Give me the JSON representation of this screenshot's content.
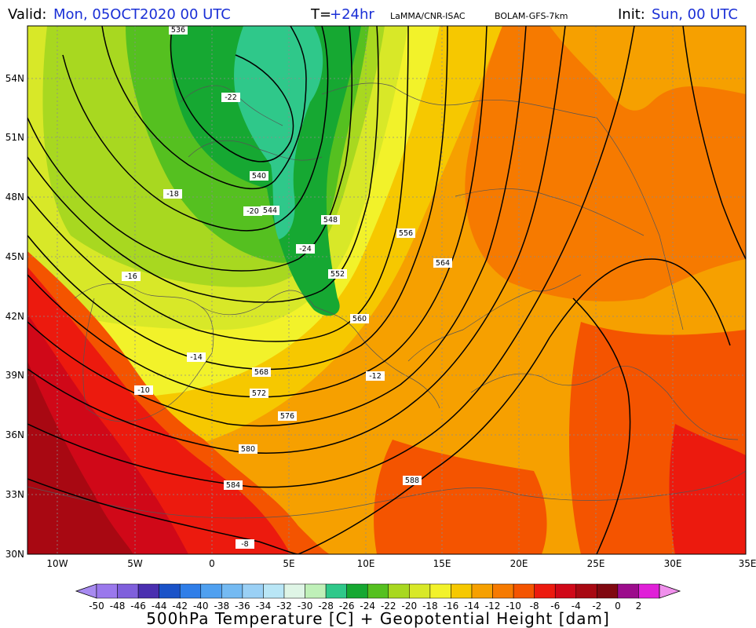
{
  "header": {
    "valid_label": "Valid:",
    "valid_value": "Mon, 05OCT2020   00 UTC",
    "step_label": "T=",
    "step_value": "+24hr",
    "producer": "LaMMA/CNR-ISAC",
    "model": "BOLAM-GFS-7km",
    "init_label": "Init:",
    "init_value": "Sun, 00 UTC"
  },
  "map": {
    "lat_labels": [
      "54N",
      "51N",
      "48N",
      "45N",
      "42N",
      "39N",
      "36N",
      "33N",
      "30N"
    ],
    "lon_labels": [
      "10W",
      "5W",
      "0",
      "5E",
      "10E",
      "15E",
      "20E",
      "25E",
      "30E",
      "35E"
    ],
    "height_labels": [
      "536",
      "540",
      "544",
      "548",
      "552",
      "556",
      "560",
      "564",
      "568",
      "572",
      "576",
      "580",
      "584",
      "588"
    ],
    "temp_labels": [
      "-24",
      "-22",
      "-20",
      "-18",
      "-16",
      "-14",
      "-12",
      "-10",
      "-8"
    ]
  },
  "colorbar": {
    "ticks": [
      "-50",
      "-48",
      "-46",
      "-44",
      "-42",
      "-40",
      "-38",
      "-36",
      "-34",
      "-32",
      "-30",
      "-28",
      "-26",
      "-24",
      "-22",
      "-20",
      "-18",
      "-16",
      "-14",
      "-12",
      "-10",
      "-8",
      "-6",
      "-4",
      "-2",
      "0",
      "2"
    ],
    "colors": [
      "#a78af0",
      "#9a78ec",
      "#7f5fdc",
      "#4a2fb0",
      "#1a52c8",
      "#2f7ee8",
      "#4fa0f0",
      "#74baf2",
      "#9ad0f5",
      "#b9e6f6",
      "#dff5e6",
      "#bff0b8",
      "#2fc88a",
      "#16a832",
      "#55c020",
      "#a8d820",
      "#d8e828",
      "#f2f22a",
      "#f6c800",
      "#f6a000",
      "#f67a00",
      "#f45400",
      "#ec1a0e",
      "#d00818",
      "#a80812",
      "#800810",
      "#9c0c8c",
      "#e020d8",
      "#f090ec"
    ],
    "title": "500hPa Temperature [C] + Geopotential Height [dam]"
  }
}
